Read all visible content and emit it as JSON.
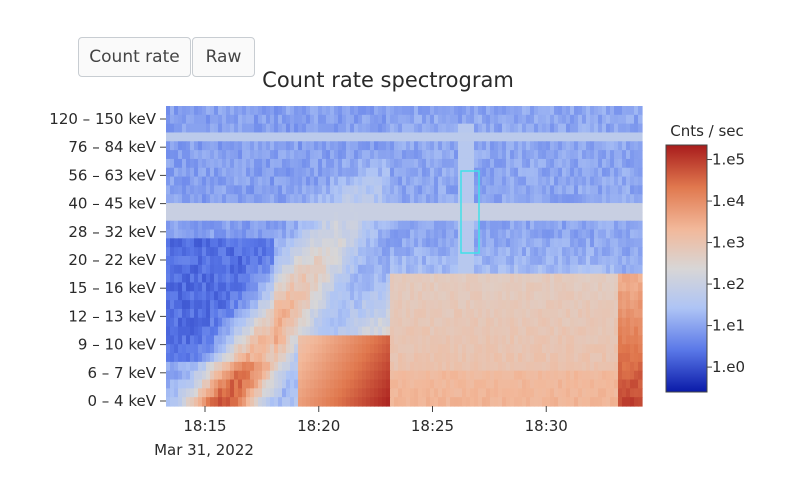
{
  "buttons": {
    "count_rate": "Count rate",
    "raw": "Raw"
  },
  "chart_data": {
    "type": "heatmap",
    "title": "Count rate spectrogram",
    "x_tick_labels": [
      "18:15",
      "18:20",
      "18:25",
      "18:30"
    ],
    "x_date_label": "Mar 31, 2022",
    "x_range": [
      "18:13:20",
      "18:34:10"
    ],
    "y_tick_labels": [
      "0 – 4 keV",
      "6 – 7 keV",
      "9 – 10 keV",
      "12 – 13 keV",
      "15 – 16 keV",
      "20 – 22 keV",
      "28 – 32 keV",
      "40 – 45 keV",
      "56 – 63 keV",
      "76 – 84 keV",
      "120 – 150 keV"
    ],
    "colorbar": {
      "title": "Cnts / sec",
      "tick_labels": [
        "1.e0",
        "1.e1",
        "1.e2",
        "1.e3",
        "1.e4",
        "1.e5"
      ],
      "log10_range": [
        -0.6,
        5.35
      ],
      "colorscale": [
        "#0a1aa8",
        "#5a78e8",
        "#aec4f5",
        "#d8d6d6",
        "#f2b89a",
        "#e0784e",
        "#a81c1c"
      ]
    },
    "highlight": {
      "x_range": [
        "18:26:10",
        "18:27:00"
      ],
      "energy_range": [
        "20 – 22 keV",
        "56 – 63 keV"
      ],
      "color": "#40e0e8"
    },
    "description_log10_counts": {
      "background_high_energy": 0.6,
      "dip_low_energy_early": 0.2,
      "peak_6_7_keV_near_18:23": 5.3,
      "plateau_after_18:23": 3.2,
      "burst_after_18:33": 5.0
    }
  }
}
